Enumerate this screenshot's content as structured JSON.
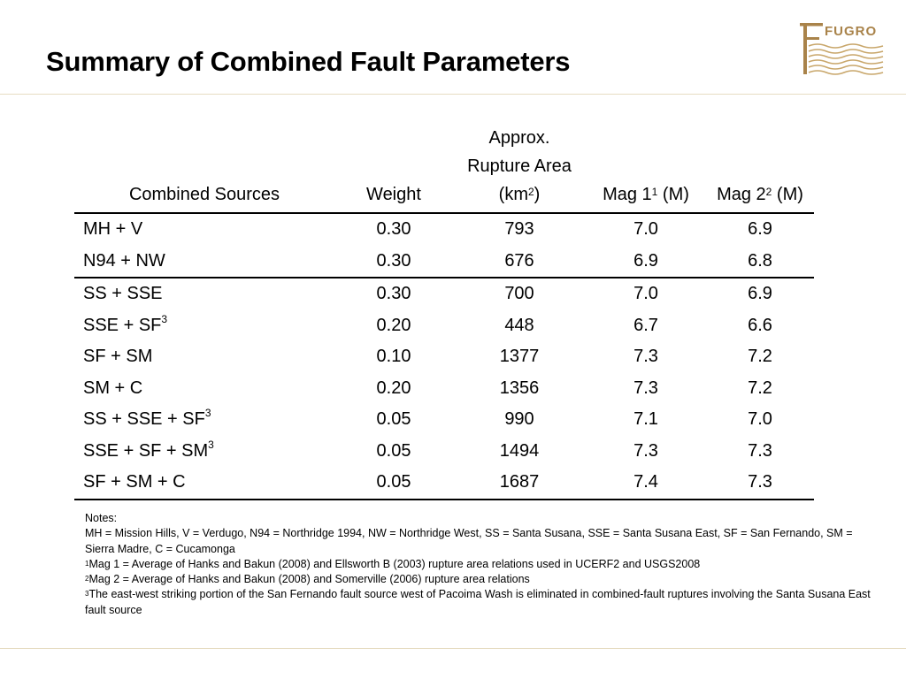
{
  "title": "Summary of Combined Fault Parameters",
  "logo": {
    "text": "FUGRO",
    "color": "#a9834a"
  },
  "table": {
    "headers": {
      "sources": "Combined Sources",
      "weight": "Weight",
      "area_line1": "Approx.",
      "area_line2": "Rupture Area",
      "area_line3": "(km",
      "area_sup": "2",
      "area_close": ")",
      "mag1": "Mag 1",
      "mag1_sup": "1",
      "mag1_unit": " (M)",
      "mag2": "Mag 2",
      "mag2_sup": "2",
      "mag2_unit": " (M)"
    },
    "rows": [
      {
        "source": "MH + V",
        "sup": "",
        "weight": "0.30",
        "area": "793",
        "mag1": "7.0",
        "mag2": "6.9"
      },
      {
        "source": "N94 + NW",
        "sup": "",
        "weight": "0.30",
        "area": "676",
        "mag1": "6.9",
        "mag2": "6.8"
      },
      {
        "source": "SS + SSE",
        "sup": "",
        "weight": "0.30",
        "area": "700",
        "mag1": "7.0",
        "mag2": "6.9"
      },
      {
        "source": "SSE + SF",
        "sup": "3",
        "weight": "0.20",
        "area": "448",
        "mag1": "6.7",
        "mag2": "6.6"
      },
      {
        "source": "SF + SM",
        "sup": "",
        "weight": "0.10",
        "area": "1377",
        "mag1": "7.3",
        "mag2": "7.2"
      },
      {
        "source": "SM + C",
        "sup": "",
        "weight": "0.20",
        "area": "1356",
        "mag1": "7.3",
        "mag2": "7.2"
      },
      {
        "source": "SS + SSE + SF",
        "sup": "3",
        "weight": "0.05",
        "area": "990",
        "mag1": "7.1",
        "mag2": "7.0"
      },
      {
        "source": "SSE + SF + SM",
        "sup": "3",
        "weight": "0.05",
        "area": "1494",
        "mag1": "7.3",
        "mag2": "7.3"
      },
      {
        "source": "SF + SM + C",
        "sup": "",
        "weight": "0.05",
        "area": "1687",
        "mag1": "7.4",
        "mag2": "7.3"
      }
    ]
  },
  "notes": {
    "heading": "Notes:",
    "abbreviations": "MH = Mission Hills, V = Verdugo, N94 = Northridge 1994, NW = Northridge West, SS = Santa Susana, SSE = Santa Susana East, SF = San Fernando, SM = Sierra Madre, C = Cucamonga",
    "note1_sup": "1",
    "note1": "Mag 1 = Average of Hanks and Bakun (2008) and Ellsworth B (2003) rupture area relations used in UCERF2 and USGS2008",
    "note2_sup": "2",
    "note2": "Mag 2 = Average of Hanks and Bakun (2008) and Somerville (2006) rupture area relations",
    "note3_sup": "3",
    "note3": "The east-west striking portion of the San Fernando fault source west of Pacoima Wash is eliminated in combined-fault ruptures involving the Santa Susana East fault source"
  }
}
